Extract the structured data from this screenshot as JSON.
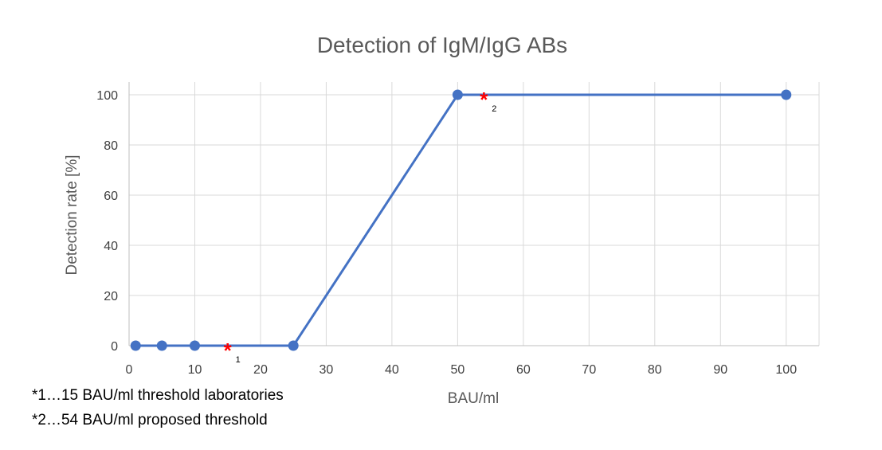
{
  "chart_data": {
    "type": "line",
    "title": "Detection of IgM/IgG ABs",
    "xlabel": "BAU/ml",
    "ylabel": "Detection rate [%]",
    "xlim": [
      0,
      105
    ],
    "ylim": [
      0,
      100
    ],
    "x_ticks": [
      0,
      10,
      20,
      30,
      40,
      50,
      60,
      70,
      80,
      90,
      100
    ],
    "y_ticks": [
      0,
      20,
      40,
      60,
      80,
      100
    ],
    "grid": true,
    "series": [
      {
        "x": [
          1,
          5,
          10,
          25,
          50,
          100
        ],
        "y": [
          0,
          0,
          0,
          0,
          100,
          100
        ]
      }
    ],
    "annotations": [
      {
        "symbol": "*",
        "label": "1",
        "x": 15,
        "y": 0
      },
      {
        "symbol": "*",
        "label": "2",
        "x": 54,
        "y": 100
      }
    ],
    "colors": {
      "line": "#4472C4",
      "marker": "#4472C4",
      "annotation": "#FF0000",
      "grid": "#D9D9D9"
    }
  },
  "notes": [
    "*1…15 BAU/ml threshold laboratories",
    "*2…54 BAU/ml proposed threshold"
  ]
}
